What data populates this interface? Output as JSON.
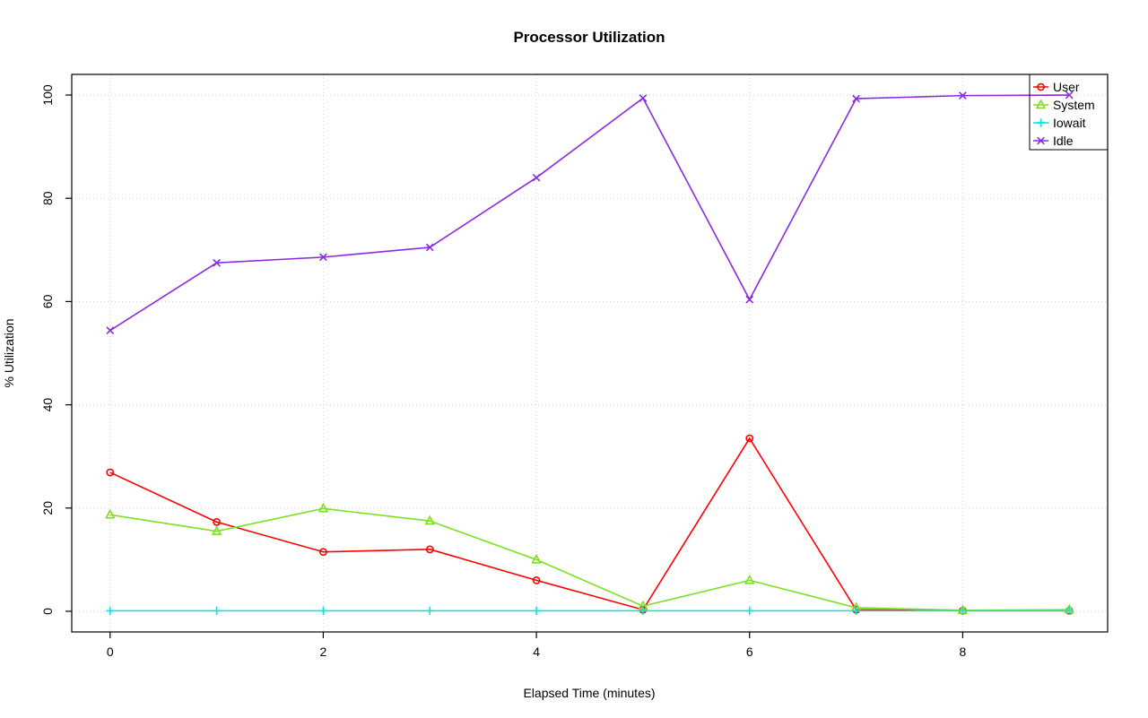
{
  "chart_data": {
    "type": "line",
    "title": "Processor Utilization",
    "xlabel": "Elapsed Time (minutes)",
    "ylabel": "% Utilization",
    "xlim": [
      0,
      9
    ],
    "ylim": [
      0,
      100
    ],
    "xticks": [
      0,
      2,
      4,
      6,
      8
    ],
    "yticks": [
      0,
      20,
      40,
      60,
      80,
      100
    ],
    "grid": true,
    "grid_color": "#d3d3d3",
    "box_color": "#000000",
    "legend_position": "top-right",
    "x": [
      0,
      1,
      2,
      3,
      4,
      5,
      6,
      7,
      8,
      9
    ],
    "series": [
      {
        "name": "User",
        "color": "#ff0000",
        "marker": "circle",
        "values": [
          26.9,
          17.3,
          11.5,
          12.0,
          6.0,
          0.3,
          33.5,
          0.3,
          0.1,
          0.1
        ]
      },
      {
        "name": "System",
        "color": "#7ce01e",
        "marker": "triangle",
        "values": [
          18.7,
          15.5,
          19.9,
          17.5,
          10.0,
          1.0,
          6.0,
          0.7,
          0.2,
          0.3
        ]
      },
      {
        "name": "Iowait",
        "color": "#00e5e5",
        "marker": "plus",
        "values": [
          0.1,
          0.1,
          0.1,
          0.1,
          0.1,
          0.1,
          0.1,
          0.1,
          0.1,
          0.1
        ]
      },
      {
        "name": "Idle",
        "color": "#8a2be2",
        "marker": "x",
        "values": [
          54.4,
          67.5,
          68.6,
          70.5,
          84.0,
          99.4,
          60.4,
          99.3,
          99.9,
          100.0
        ]
      }
    ]
  }
}
